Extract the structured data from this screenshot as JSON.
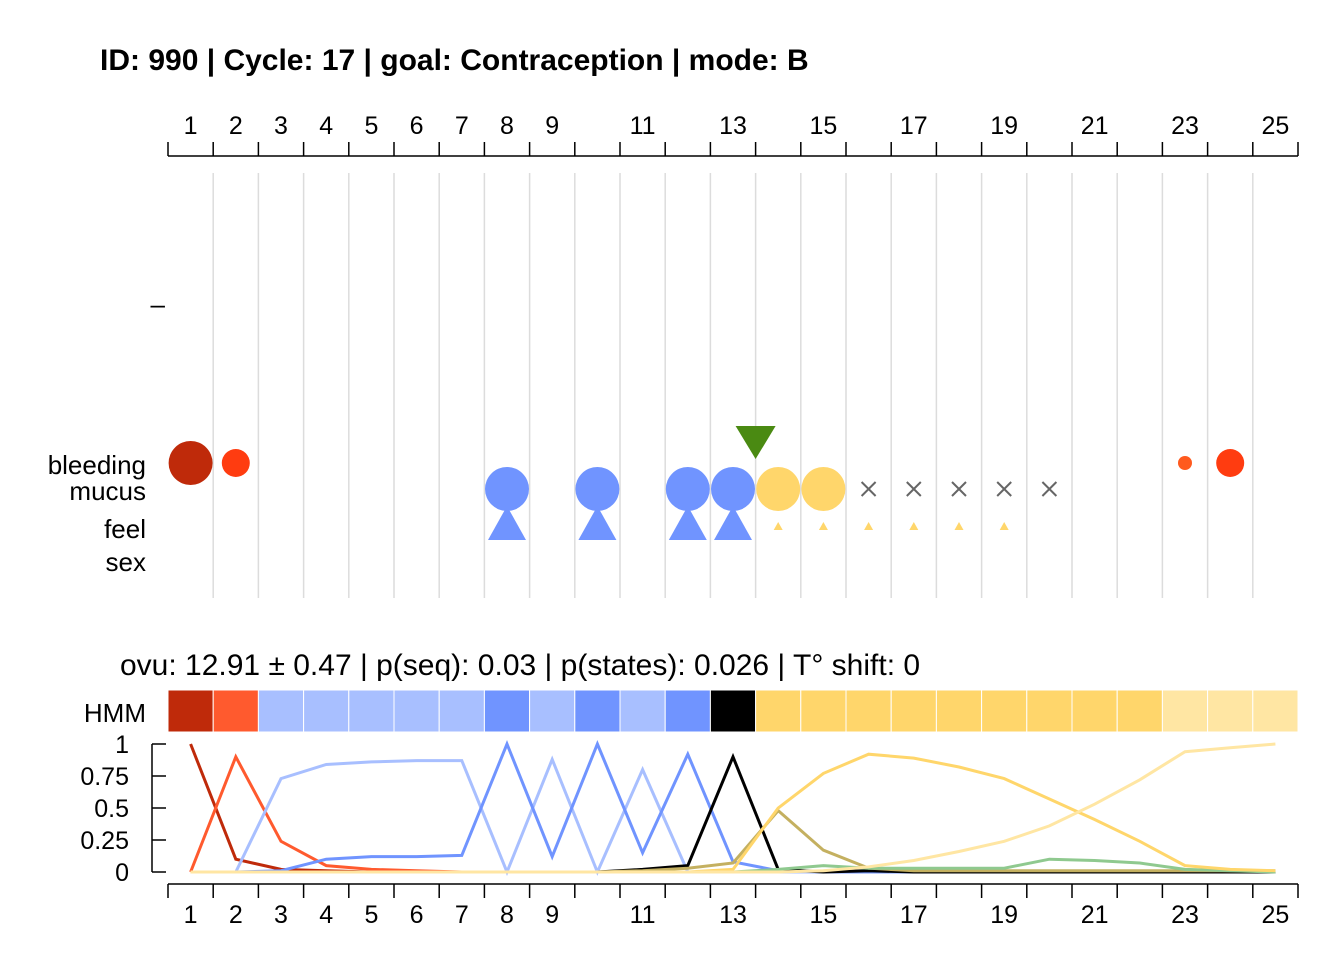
{
  "title": "ID: 990 | Cycle: 17 | goal: Contraception  |  mode: B",
  "stats_line": "ovu:  12.91  ±  0.47  | p(seq):  0.03  | p(states):  0.026  | T° shift:  0",
  "labels": {
    "temp_dash": "–",
    "bleeding": "bleeding",
    "mucus": "mucus",
    "feel": "feel",
    "sex": "sex",
    "hmm": "HMM"
  },
  "chart_data": [
    {
      "type": "scatter",
      "x_axis": {
        "range": [
          1,
          25
        ],
        "tick_labels_top": [
          "1",
          "2",
          "3",
          "4",
          "5",
          "6",
          "7",
          "8",
          "9",
          "11",
          "13",
          "15",
          "17",
          "19",
          "21",
          "23",
          "25"
        ],
        "tick_labels_bottom": [
          "1",
          "2",
          "3",
          "4",
          "5",
          "6",
          "7",
          "8",
          "9",
          "11",
          "13",
          "15",
          "17",
          "19",
          "21",
          "23",
          "25"
        ],
        "grid": true
      },
      "bleeding": [
        {
          "day": 1,
          "size": "large",
          "color": "#BF2A0A"
        },
        {
          "day": 2,
          "size": "medium",
          "color": "#FF3C10"
        },
        {
          "day": 23,
          "size": "small",
          "color": "#FF5A1E"
        },
        {
          "day": 24,
          "size": "medium",
          "color": "#FF3C10"
        }
      ],
      "mucus": [
        {
          "day": 8,
          "kind": "circle",
          "color": "#7094FF"
        },
        {
          "day": 10,
          "kind": "circle",
          "color": "#7094FF"
        },
        {
          "day": 12,
          "kind": "circle",
          "color": "#7094FF"
        },
        {
          "day": 13,
          "kind": "circle",
          "color": "#7094FF"
        },
        {
          "day": 14,
          "kind": "circle",
          "color": "#FFD66B"
        },
        {
          "day": 15,
          "kind": "circle",
          "color": "#FFD66B"
        },
        {
          "day": 16,
          "kind": "cross",
          "color": "#666666"
        },
        {
          "day": 17,
          "kind": "cross",
          "color": "#666666"
        },
        {
          "day": 18,
          "kind": "cross",
          "color": "#666666"
        },
        {
          "day": 19,
          "kind": "cross",
          "color": "#666666"
        },
        {
          "day": 20,
          "kind": "cross",
          "color": "#666666"
        }
      ],
      "feel": [
        {
          "day": 8,
          "size": "large",
          "color": "#7094FF"
        },
        {
          "day": 10,
          "size": "large",
          "color": "#7094FF"
        },
        {
          "day": 12,
          "size": "large",
          "color": "#7094FF"
        },
        {
          "day": 13,
          "size": "large",
          "color": "#7094FF"
        },
        {
          "day": 14,
          "size": "small",
          "color": "#FFD66B"
        },
        {
          "day": 15,
          "size": "small",
          "color": "#FFD66B"
        },
        {
          "day": 16,
          "size": "small",
          "color": "#FFD66B"
        },
        {
          "day": 17,
          "size": "small",
          "color": "#FFD66B"
        },
        {
          "day": 18,
          "size": "small",
          "color": "#FFD66B"
        },
        {
          "day": 19,
          "size": "small",
          "color": "#FFD66B"
        }
      ],
      "ovulation_marker": {
        "day": 13.5,
        "color": "#4A8A12"
      }
    },
    {
      "type": "heatmap",
      "name": "HMM",
      "days": [
        1,
        2,
        3,
        4,
        5,
        6,
        7,
        8,
        9,
        10,
        11,
        12,
        13,
        14,
        15,
        16,
        17,
        18,
        19,
        20,
        21,
        22,
        23,
        24,
        25
      ],
      "colors": [
        "#BF2A0A",
        "#FF5A2E",
        "#A8BFFF",
        "#A8BFFF",
        "#A8BFFF",
        "#A8BFFF",
        "#A8BFFF",
        "#7094FF",
        "#A8BFFF",
        "#7094FF",
        "#A8BFFF",
        "#7094FF",
        "#000000",
        "#FFD66B",
        "#FFD66B",
        "#FFD66B",
        "#FFD66B",
        "#FFD66B",
        "#FFD66B",
        "#FFD66B",
        "#FFD66B",
        "#FFD66B",
        "#FFE6A3",
        "#FFE6A3",
        "#FFE6A3"
      ]
    },
    {
      "type": "line",
      "x": [
        1,
        2,
        3,
        4,
        5,
        6,
        7,
        8,
        9,
        10,
        11,
        12,
        13,
        14,
        15,
        16,
        17,
        18,
        19,
        20,
        21,
        22,
        23,
        24,
        25
      ],
      "ylim": [
        0,
        1
      ],
      "y_tick_labels": [
        "0",
        "0.25",
        "0.5",
        "0.75",
        "1"
      ],
      "series": [
        {
          "color": "#BF2A0A",
          "values": [
            1,
            0.1,
            0.02,
            0.01,
            0,
            0,
            0,
            0,
            0,
            0,
            0,
            0,
            0,
            0,
            0,
            0,
            0,
            0,
            0,
            0,
            0,
            0,
            0,
            0,
            0
          ]
        },
        {
          "color": "#FF5A2E",
          "values": [
            0,
            0.9,
            0.24,
            0.05,
            0.02,
            0.01,
            0,
            0,
            0,
            0,
            0,
            0,
            0,
            0,
            0,
            0,
            0,
            0,
            0,
            0,
            0,
            0,
            0,
            0,
            0
          ]
        },
        {
          "color": "#A8BFFF",
          "values": [
            0,
            0,
            0.73,
            0.84,
            0.86,
            0.87,
            0.87,
            0,
            0.88,
            0,
            0.8,
            0,
            0,
            0,
            0,
            0,
            0,
            0,
            0,
            0,
            0,
            0,
            0,
            0,
            0
          ]
        },
        {
          "color": "#7094FF",
          "values": [
            0,
            0,
            0.01,
            0.1,
            0.12,
            0.12,
            0.13,
            1,
            0.12,
            1,
            0.15,
            0.92,
            0.08,
            0.01,
            0,
            0,
            0,
            0,
            0,
            0,
            0,
            0,
            0,
            0,
            0
          ]
        },
        {
          "color": "#000000",
          "values": [
            0,
            0,
            0,
            0,
            0,
            0,
            0,
            0,
            0,
            0,
            0.02,
            0.05,
            0.9,
            0.02,
            0,
            0.01,
            0,
            0,
            0,
            0,
            0,
            0,
            0,
            0,
            0
          ]
        },
        {
          "color": "#C4B060",
          "values": [
            0,
            0,
            0,
            0,
            0,
            0,
            0,
            0,
            0,
            0,
            0.01,
            0.03,
            0.07,
            0.48,
            0.17,
            0.03,
            0.01,
            0.01,
            0.01,
            0.01,
            0.01,
            0.01,
            0.01,
            0.01,
            0.01
          ]
        },
        {
          "color": "#8FC98F",
          "values": [
            0,
            0,
            0,
            0,
            0,
            0,
            0,
            0,
            0,
            0,
            0,
            0,
            0,
            0.02,
            0.05,
            0.03,
            0.03,
            0.03,
            0.03,
            0.1,
            0.09,
            0.07,
            0.02,
            0.01,
            0
          ]
        },
        {
          "color": "#FFD66B",
          "values": [
            0,
            0,
            0,
            0,
            0,
            0,
            0,
            0,
            0,
            0,
            0,
            0,
            0.02,
            0.5,
            0.77,
            0.92,
            0.89,
            0.82,
            0.73,
            0.57,
            0.41,
            0.24,
            0.05,
            0.02,
            0.01
          ]
        },
        {
          "color": "#FFE6A3",
          "values": [
            0,
            0,
            0,
            0,
            0,
            0,
            0,
            0,
            0,
            0,
            0,
            0,
            0,
            0,
            0.01,
            0.04,
            0.09,
            0.16,
            0.24,
            0.36,
            0.53,
            0.72,
            0.94,
            0.97,
            1
          ]
        }
      ]
    }
  ]
}
